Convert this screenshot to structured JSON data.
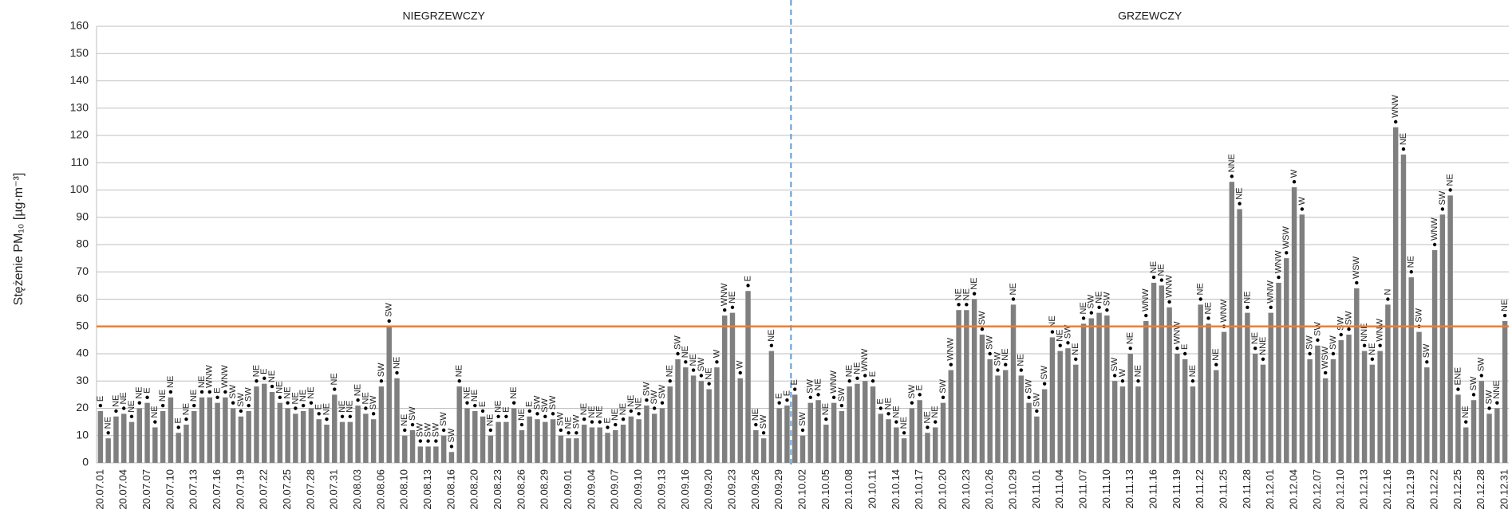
{
  "chart_data": {
    "type": "bar",
    "ylabel": "Stężenie PM₁₀ [µg·m⁻³]",
    "sections": [
      {
        "label": "NIEGRZEWCZY",
        "count": 89
      },
      {
        "label": "GRZEWCZY",
        "count": 92
      }
    ],
    "threshold": 50,
    "threshold_color": "#ed7d31",
    "divider_color": "#5b9bd5",
    "grid": true,
    "ylim": [
      0,
      160
    ],
    "yticks": [
      0,
      10,
      20,
      30,
      40,
      50,
      60,
      70,
      80,
      90,
      100,
      110,
      120,
      130,
      140,
      150,
      160
    ],
    "categories": [
      "20.07.01",
      null,
      null,
      "20.07.04",
      null,
      null,
      "20.07.07",
      null,
      null,
      "20.07.10",
      null,
      null,
      "20.07.13",
      null,
      null,
      "20.07.16",
      null,
      null,
      "20.07.19",
      null,
      null,
      "20.07.22",
      null,
      null,
      "20.07.25",
      null,
      null,
      "20.07.28",
      null,
      null,
      "20.07.31",
      null,
      null,
      "20.08.03",
      null,
      null,
      "20.08.06",
      null,
      null,
      "20.08.10",
      null,
      null,
      "20.08.13",
      null,
      null,
      "20.08.16",
      null,
      null,
      "20.08.20",
      null,
      null,
      "20.08.23",
      null,
      null,
      "20.08.26",
      null,
      null,
      "20.08.29",
      null,
      null,
      "20.09.01",
      null,
      null,
      "20.09.04",
      null,
      null,
      "20.09.07",
      null,
      null,
      "20.09.10",
      null,
      null,
      "20.09.13",
      null,
      null,
      "20.09.16",
      null,
      null,
      "20.09.20",
      null,
      null,
      "20.09.23",
      null,
      null,
      "20.09.26",
      null,
      null,
      "20.09.29",
      null,
      null,
      "20.10.02",
      null,
      null,
      "20.10.05",
      null,
      null,
      "20.10.08",
      null,
      null,
      "20.10.11",
      null,
      null,
      "20.10.14",
      null,
      null,
      "20.10.17",
      null,
      null,
      "20.10.20",
      null,
      null,
      "20.10.23",
      null,
      null,
      "20.10.26",
      null,
      null,
      "20.10.29",
      null,
      null,
      "20.11.01",
      null,
      null,
      "20.11.04",
      null,
      null,
      "20.11.07",
      null,
      null,
      "20.11.10",
      null,
      null,
      "20.11.13",
      null,
      null,
      "20.11.16",
      null,
      null,
      "20.11.19",
      null,
      null,
      "20.11.22",
      null,
      null,
      "20.11.25",
      null,
      null,
      "20.11.28",
      null,
      null,
      "20.12.01",
      null,
      null,
      "20.12.04",
      null,
      null,
      "20.12.07",
      null,
      null,
      "20.12.10",
      null,
      null,
      "20.12.13",
      null,
      null,
      "20.12.16",
      null,
      null,
      "20.12.19",
      null,
      null,
      "20.12.22",
      null,
      null,
      "20.12.25",
      null,
      null,
      "20.12.28",
      null,
      null,
      "20.12.31"
    ],
    "series": [
      {
        "color": "#7f7f7f",
        "values": [
          19,
          9,
          17,
          18,
          15,
          20,
          22,
          13,
          19,
          24,
          11,
          14,
          19,
          24,
          24,
          22,
          24,
          20,
          17,
          19,
          28,
          29,
          26,
          22,
          20,
          18,
          19,
          20,
          16,
          14,
          25,
          15,
          15,
          21,
          18,
          16,
          28,
          50,
          31,
          10,
          12,
          6,
          6,
          6,
          10,
          4,
          28,
          20,
          19,
          17,
          10,
          15,
          15,
          20,
          12,
          17,
          16,
          15,
          16,
          10,
          9,
          9,
          14,
          13,
          13,
          11,
          12,
          14,
          17,
          16,
          21,
          18,
          20,
          28,
          38,
          35,
          32,
          30,
          27,
          35,
          54,
          55,
          31,
          63,
          12,
          9,
          41,
          20,
          21,
          25,
          10,
          22,
          23,
          14,
          22,
          19,
          28,
          29,
          30,
          28,
          18,
          16,
          13,
          9,
          20,
          23,
          11,
          13,
          22,
          34,
          56,
          56,
          60,
          47,
          38,
          32,
          34,
          58,
          32,
          22,
          17,
          27,
          46,
          41,
          42,
          36,
          51,
          53,
          55,
          54,
          30,
          28,
          40,
          28,
          52,
          66,
          65,
          57,
          40,
          38,
          28,
          58,
          51,
          34,
          48,
          103,
          93,
          55,
          40,
          36,
          55,
          66,
          75,
          101,
          91,
          38,
          43,
          31,
          38,
          45,
          47,
          64,
          41,
          36,
          41,
          58,
          123,
          113,
          68,
          48,
          35,
          78,
          91,
          98,
          25,
          13,
          23,
          30,
          18,
          20,
          52
        ]
      },
      {
        "color": "#000000",
        "values": [
          21,
          11,
          19,
          20,
          17,
          22,
          24,
          15,
          21,
          26,
          13,
          16,
          21,
          26,
          26,
          24,
          26,
          22,
          19,
          21,
          30,
          31,
          28,
          24,
          22,
          20,
          21,
          22,
          18,
          16,
          27,
          17,
          17,
          23,
          20,
          18,
          30,
          52,
          33,
          12,
          14,
          8,
          8,
          8,
          12,
          6,
          30,
          22,
          21,
          19,
          12,
          17,
          17,
          22,
          14,
          19,
          18,
          17,
          18,
          12,
          11,
          11,
          16,
          15,
          15,
          13,
          14,
          16,
          19,
          18,
          23,
          20,
          22,
          30,
          40,
          37,
          34,
          32,
          29,
          37,
          56,
          57,
          33,
          65,
          14,
          11,
          43,
          22,
          23,
          27,
          12,
          24,
          25,
          16,
          24,
          21,
          30,
          31,
          32,
          30,
          20,
          18,
          15,
          11,
          22,
          25,
          13,
          15,
          24,
          36,
          58,
          58,
          62,
          49,
          40,
          34,
          36,
          60,
          34,
          24,
          19,
          29,
          48,
          43,
          44,
          38,
          53,
          55,
          57,
          56,
          32,
          30,
          42,
          30,
          54,
          68,
          67,
          59,
          42,
          40,
          30,
          60,
          53,
          36,
          50,
          105,
          95,
          57,
          42,
          38,
          57,
          68,
          77,
          103,
          93,
          40,
          45,
          33,
          40,
          47,
          49,
          66,
          43,
          38,
          43,
          60,
          125,
          115,
          70,
          50,
          37,
          80,
          93,
          100,
          27,
          15,
          25,
          32,
          20,
          22,
          54
        ]
      }
    ],
    "wind_directions": [
      "E",
      "NE",
      "NE",
      "NE",
      "NE",
      "NE",
      "E",
      "NE",
      "NE",
      "NE",
      "E",
      "NE",
      "NE",
      "NE",
      "WNW",
      "E",
      "WNW",
      "SW",
      "SW",
      "SW",
      "NE",
      "E",
      "NE",
      "NE",
      "NE",
      "NE",
      "NE",
      "NE",
      "E",
      "NE",
      "NE",
      "NE",
      "NE",
      "NE",
      "NE",
      "SW",
      "SW",
      "SW",
      "NE",
      "NE",
      "SW",
      "SW",
      "SW",
      "SW",
      "SW",
      "SW",
      "NE",
      "NE",
      "NE",
      "E",
      "NE",
      "NE",
      "E",
      "NE",
      "NE",
      "E",
      "SW",
      "SW",
      "SW",
      "SW",
      "NE",
      "SW",
      "NE",
      "NE",
      "NE",
      "E",
      "NE",
      "NE",
      "NE",
      "NE",
      "SW",
      "SW",
      "SW",
      "NE",
      "SW",
      "NE",
      "NE",
      "SW",
      "NE",
      "W",
      "WNW",
      "NE",
      "W",
      "E",
      "NE",
      "SW",
      "NE",
      "E",
      "E",
      "E",
      "SW",
      "SW",
      "NE",
      "NE",
      "WNW",
      "SW",
      "NE",
      "NE",
      "WNW",
      "E",
      "E",
      "NE",
      "NE",
      "NE",
      "SW",
      "E",
      "NE",
      "NE",
      "SW",
      "WNW",
      "NE",
      "NE",
      "NE",
      "SW",
      "SW",
      "SW",
      "NE",
      "NE",
      "NE",
      "SW",
      "SW",
      "SW",
      "NE",
      "NE",
      "SW",
      "NE",
      "NE",
      "SW",
      "NE",
      "SW",
      "SW",
      "W",
      "NE",
      "NE",
      "WNW",
      "NE",
      "NE",
      "WNW",
      "WNW",
      "E",
      "NE",
      "NE",
      "NE",
      "NE",
      "WNW",
      "NNE",
      "NE",
      "NE",
      "NE",
      "NNE",
      "WNW",
      "WNW",
      "WSW",
      "W",
      "W",
      "SW",
      "SW",
      "WSW",
      "SW",
      "SW",
      "SW",
      "WSW",
      "NNE",
      "NE",
      "WNW",
      "N",
      "WNW",
      "NE",
      "NE",
      "SW",
      "SW",
      "WNW",
      "SW",
      "NE",
      "ENE",
      "NE",
      "SW",
      "SW",
      "SW",
      "NNE",
      "NE"
    ]
  }
}
